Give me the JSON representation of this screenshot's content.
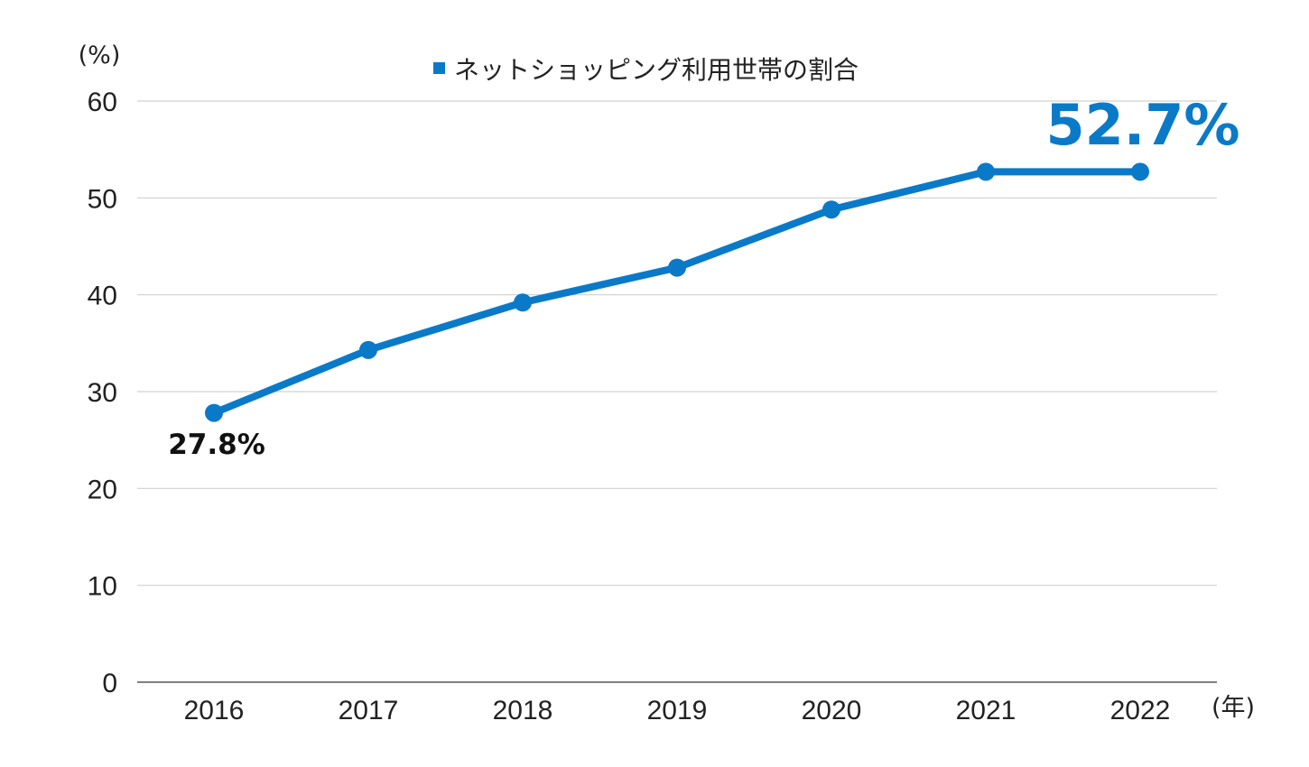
{
  "chart_data": {
    "type": "line",
    "x": [
      "2016",
      "2017",
      "2018",
      "2019",
      "2020",
      "2021",
      "2022"
    ],
    "series": [
      {
        "name": "ネットショッピング利用世帯の割合",
        "values": [
          27.8,
          34.3,
          39.2,
          42.8,
          48.8,
          52.7,
          52.7
        ]
      }
    ],
    "ylim": [
      0,
      60
    ],
    "yticks": [
      "0",
      "10",
      "20",
      "30",
      "40",
      "50",
      "60"
    ],
    "y_unit": "(%)",
    "x_unit": "(年)",
    "grid": true,
    "legend_position": "top-center",
    "annotations": {
      "start": "27.8%",
      "end": "52.7%"
    },
    "colors": {
      "series": "#0a7ac8",
      "grid": "#d0d0d0",
      "text": "#222222"
    }
  }
}
